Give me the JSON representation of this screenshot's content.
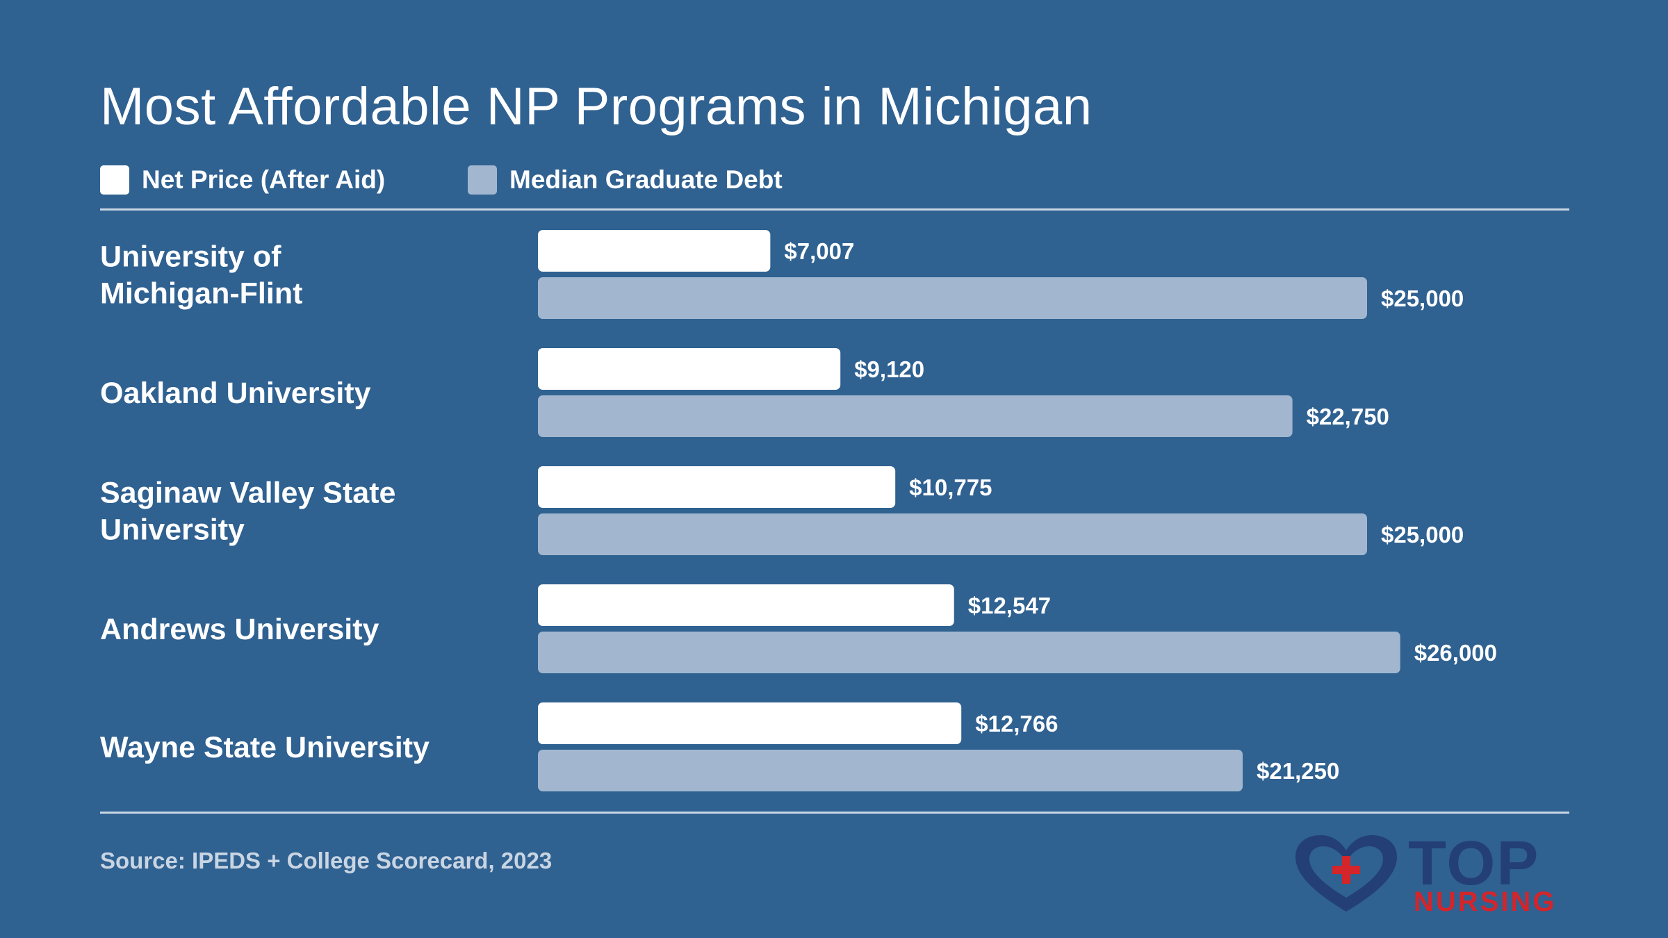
{
  "title": "Most Affordable NP Programs in Michigan",
  "legend": {
    "net_price": "Net Price (After Aid)",
    "debt": "Median Graduate Debt"
  },
  "colors": {
    "background": "#2f6191",
    "net_price": "#ffffff",
    "debt": "#a2b7cf"
  },
  "chart_data": {
    "type": "bar",
    "orientation": "horizontal",
    "title": "Most Affordable NP Programs in Michigan",
    "categories": [
      [
        "University of",
        "Michigan-Flint"
      ],
      [
        "Oakland University"
      ],
      [
        "Saginaw Valley State",
        "University"
      ],
      [
        "Andrews University"
      ],
      [
        "Wayne State University"
      ]
    ],
    "series": [
      {
        "name": "Net Price (After Aid)",
        "values": [
          7007,
          9120,
          10775,
          12547,
          12766
        ],
        "labels": [
          "$7,007",
          "$9,120",
          "$10,775",
          "$12,547",
          "$12,766"
        ]
      },
      {
        "name": "Median Graduate Debt",
        "values": [
          25000,
          22750,
          25000,
          26000,
          21250
        ],
        "labels": [
          "$25,000",
          "$22,750",
          "$25,000",
          "$26,000",
          "$21,250"
        ]
      }
    ],
    "xlim": [
      0,
      31000
    ],
    "grid": false,
    "legend_position": "top-left"
  },
  "source": "Source: IPEDS + College Scorecard, 2023",
  "logo": {
    "top": "TOP",
    "nursing": "NURSING"
  }
}
